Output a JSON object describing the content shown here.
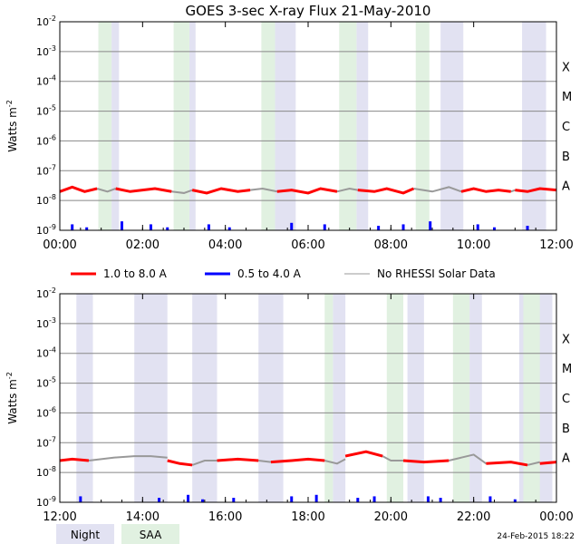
{
  "colors": {
    "night": "#e2e2f2",
    "saa": "#e1f1e1",
    "long_channel": "#ff0000",
    "short_channel": "#0000ff",
    "no_data": "#999999",
    "grid": "#888888",
    "axis": "#000000"
  },
  "footer": {
    "night_label": "Night",
    "saa_label": "SAA",
    "timestamp": "24-Feb-2015 18:22"
  },
  "chart_data": [
    {
      "type": "line",
      "title": "GOES 3-sec X-ray Flux   21-May-2010",
      "ylabel": "Watts m",
      "ylabel_superscript": "-2",
      "yscale": "log",
      "ylim_exponent": [
        -9,
        -2
      ],
      "ytick_labels": [
        {
          "exp": -9,
          "label": "10-9"
        },
        {
          "exp": -8,
          "label": "10-8"
        },
        {
          "exp": -7,
          "label": "10-7"
        },
        {
          "exp": -6,
          "label": "10-6"
        },
        {
          "exp": -5,
          "label": "10-5"
        },
        {
          "exp": -4,
          "label": "10-4"
        },
        {
          "exp": -3,
          "label": "10-3"
        },
        {
          "exp": -2,
          "label": "10-2"
        }
      ],
      "flare_classes": [
        {
          "label": "A",
          "exp": -7.5
        },
        {
          "label": "B",
          "exp": -6.5
        },
        {
          "label": "C",
          "exp": -5.5
        },
        {
          "label": "M",
          "exp": -4.5
        },
        {
          "label": "X",
          "exp": -3.5
        }
      ],
      "xlim_hours": [
        0,
        12
      ],
      "xtick_labels": [
        "00:00",
        "02:00",
        "04:00",
        "06:00",
        "08:00",
        "10:00",
        "12:00"
      ],
      "night_bands": [
        [
          1.25,
          1.43
        ],
        [
          3.13,
          3.28
        ],
        [
          5.2,
          5.7
        ],
        [
          7.17,
          7.45
        ],
        [
          9.2,
          9.75
        ],
        [
          11.17,
          11.75
        ]
      ],
      "saa_bands": [
        [
          0.93,
          1.25
        ],
        [
          2.75,
          3.13
        ],
        [
          4.87,
          5.2
        ],
        [
          6.75,
          7.17
        ],
        [
          8.6,
          8.93
        ]
      ],
      "long_series": {
        "name": "1.0 to 8.0 A",
        "segments": [
          {
            "t": [
              0.0,
              0.3,
              0.6,
              0.9
            ],
            "v": [
              -7.7,
              -7.55,
              -7.7,
              -7.6
            ]
          },
          {
            "t": [
              1.35,
              1.7,
              2.0,
              2.3,
              2.7
            ],
            "v": [
              -7.6,
              -7.7,
              -7.65,
              -7.6,
              -7.7
            ]
          },
          {
            "t": [
              3.2,
              3.55,
              3.9,
              4.3,
              4.6
            ],
            "v": [
              -7.65,
              -7.75,
              -7.6,
              -7.7,
              -7.65
            ]
          },
          {
            "t": [
              5.25,
              5.6,
              6.0,
              6.3,
              6.7
            ],
            "v": [
              -7.7,
              -7.65,
              -7.75,
              -7.6,
              -7.7
            ]
          },
          {
            "t": [
              7.2,
              7.6,
              7.9,
              8.3,
              8.55
            ],
            "v": [
              -7.65,
              -7.7,
              -7.6,
              -7.75,
              -7.6
            ]
          },
          {
            "t": [
              9.7,
              10.0,
              10.3,
              10.6,
              10.9
            ],
            "v": [
              -7.7,
              -7.6,
              -7.7,
              -7.65,
              -7.7
            ]
          },
          {
            "t": [
              11.0,
              11.3,
              11.6,
              12.0
            ],
            "v": [
              -7.65,
              -7.7,
              -7.6,
              -7.65
            ]
          }
        ]
      },
      "short_series": {
        "name": "0.5 to 4.0 A",
        "spikes": [
          {
            "t": 0.3,
            "v": -8.8
          },
          {
            "t": 0.65,
            "v": -8.9
          },
          {
            "t": 1.5,
            "v": -8.7
          },
          {
            "t": 2.2,
            "v": -8.8
          },
          {
            "t": 2.6,
            "v": -8.9
          },
          {
            "t": 3.6,
            "v": -8.8
          },
          {
            "t": 4.1,
            "v": -8.9
          },
          {
            "t": 5.6,
            "v": -8.75
          },
          {
            "t": 6.4,
            "v": -8.8
          },
          {
            "t": 7.7,
            "v": -8.85
          },
          {
            "t": 8.3,
            "v": -8.8
          },
          {
            "t": 8.95,
            "v": -8.7
          },
          {
            "t": 10.1,
            "v": -8.8
          },
          {
            "t": 10.5,
            "v": -8.9
          },
          {
            "t": 11.3,
            "v": -8.85
          }
        ]
      },
      "no_data_series": {
        "name": "No RHESSI Solar Data",
        "segments": [
          {
            "t": [
              0.9,
              1.15,
              1.35
            ],
            "v": [
              -7.6,
              -7.7,
              -7.6
            ]
          },
          {
            "t": [
              2.7,
              3.0,
              3.2
            ],
            "v": [
              -7.7,
              -7.75,
              -7.65
            ]
          },
          {
            "t": [
              4.6,
              4.9,
              5.25
            ],
            "v": [
              -7.65,
              -7.6,
              -7.7
            ]
          },
          {
            "t": [
              6.7,
              7.0,
              7.2
            ],
            "v": [
              -7.7,
              -7.6,
              -7.65
            ]
          },
          {
            "t": [
              8.55,
              9.0,
              9.4,
              9.7
            ],
            "v": [
              -7.6,
              -7.7,
              -7.55,
              -7.7
            ]
          },
          {
            "t": [
              10.9,
              11.0
            ],
            "v": [
              -7.7,
              -7.65
            ]
          }
        ]
      }
    },
    {
      "type": "line",
      "title": "",
      "ylabel": "Watts m",
      "ylabel_superscript": "-2",
      "yscale": "log",
      "ylim_exponent": [
        -9,
        -2
      ],
      "ytick_labels": [
        {
          "exp": -9,
          "label": "10-9"
        },
        {
          "exp": -8,
          "label": "10-8"
        },
        {
          "exp": -7,
          "label": "10-7"
        },
        {
          "exp": -6,
          "label": "10-6"
        },
        {
          "exp": -5,
          "label": "10-5"
        },
        {
          "exp": -4,
          "label": "10-4"
        },
        {
          "exp": -3,
          "label": "10-3"
        },
        {
          "exp": -2,
          "label": "10-2"
        }
      ],
      "flare_classes": [
        {
          "label": "A",
          "exp": -7.5
        },
        {
          "label": "B",
          "exp": -6.5
        },
        {
          "label": "C",
          "exp": -5.5
        },
        {
          "label": "M",
          "exp": -4.5
        },
        {
          "label": "X",
          "exp": -3.5
        }
      ],
      "xlim_hours": [
        12,
        24
      ],
      "xtick_labels": [
        "12:00",
        "14:00",
        "16:00",
        "18:00",
        "20:00",
        "22:00",
        "00:00"
      ],
      "night_bands": [
        [
          12.4,
          12.8
        ],
        [
          13.8,
          14.6
        ],
        [
          15.2,
          15.8
        ],
        [
          16.8,
          17.4
        ],
        [
          18.6,
          18.9
        ],
        [
          20.4,
          20.8
        ],
        [
          21.9,
          22.2
        ],
        [
          23.1,
          23.9
        ]
      ],
      "saa_bands": [
        [
          18.4,
          18.6
        ],
        [
          19.9,
          20.3
        ],
        [
          21.5,
          21.9
        ],
        [
          23.2,
          23.6
        ]
      ],
      "long_series": {
        "name": "1.0 to 8.0 A",
        "segments": [
          {
            "t": [
              12.0,
              12.3,
              12.7
            ],
            "v": [
              -7.6,
              -7.55,
              -7.6
            ]
          },
          {
            "t": [
              14.6,
              14.9,
              15.2
            ],
            "v": [
              -7.6,
              -7.7,
              -7.75
            ]
          },
          {
            "t": [
              15.8,
              16.3,
              16.8
            ],
            "v": [
              -7.6,
              -7.55,
              -7.6
            ]
          },
          {
            "t": [
              17.1,
              17.6,
              18.0,
              18.4
            ],
            "v": [
              -7.65,
              -7.6,
              -7.55,
              -7.6
            ]
          },
          {
            "t": [
              18.9,
              19.4,
              19.8
            ],
            "v": [
              -7.45,
              -7.3,
              -7.45
            ]
          },
          {
            "t": [
              20.3,
              20.8,
              21.4
            ],
            "v": [
              -7.6,
              -7.65,
              -7.6
            ]
          },
          {
            "t": [
              22.3,
              22.9,
              23.3
            ],
            "v": [
              -7.7,
              -7.65,
              -7.75
            ]
          },
          {
            "t": [
              23.6,
              24.0
            ],
            "v": [
              -7.7,
              -7.65
            ]
          }
        ]
      },
      "short_series": {
        "name": "0.5 to 4.0 A",
        "spikes": [
          {
            "t": 12.5,
            "v": -8.8
          },
          {
            "t": 14.4,
            "v": -8.85
          },
          {
            "t": 15.1,
            "v": -8.75
          },
          {
            "t": 15.45,
            "v": -8.9
          },
          {
            "t": 16.2,
            "v": -8.85
          },
          {
            "t": 17.6,
            "v": -8.8
          },
          {
            "t": 18.2,
            "v": -8.75
          },
          {
            "t": 19.2,
            "v": -8.85
          },
          {
            "t": 19.6,
            "v": -8.8
          },
          {
            "t": 20.9,
            "v": -8.8
          },
          {
            "t": 21.2,
            "v": -8.85
          },
          {
            "t": 22.4,
            "v": -8.8
          },
          {
            "t": 23.0,
            "v": -8.9
          }
        ]
      },
      "no_data_series": {
        "name": "No RHESSI Solar Data",
        "segments": [
          {
            "t": [
              12.7,
              13.3,
              13.8,
              14.2,
              14.6
            ],
            "v": [
              -7.6,
              -7.5,
              -7.45,
              -7.45,
              -7.5
            ]
          },
          {
            "t": [
              15.2,
              15.5,
              15.8
            ],
            "v": [
              -7.75,
              -7.6,
              -7.6
            ]
          },
          {
            "t": [
              16.8,
              17.1
            ],
            "v": [
              -7.6,
              -7.65
            ]
          },
          {
            "t": [
              18.4,
              18.7,
              18.9
            ],
            "v": [
              -7.6,
              -7.7,
              -7.55
            ]
          },
          {
            "t": [
              19.8,
              20.0,
              20.3
            ],
            "v": [
              -7.45,
              -7.6,
              -7.6
            ]
          },
          {
            "t": [
              21.4,
              21.7,
              22.0,
              22.3
            ],
            "v": [
              -7.6,
              -7.5,
              -7.4,
              -7.7
            ]
          },
          {
            "t": [
              23.3,
              23.6
            ],
            "v": [
              -7.75,
              -7.65
            ]
          }
        ]
      }
    }
  ],
  "legend": [
    {
      "label": "1.0 to 8.0 A",
      "color": "#ff0000"
    },
    {
      "label": "0.5 to 4.0 A",
      "color": "#0000ff"
    },
    {
      "label": "No RHESSI Solar Data",
      "color": "#999999"
    }
  ]
}
